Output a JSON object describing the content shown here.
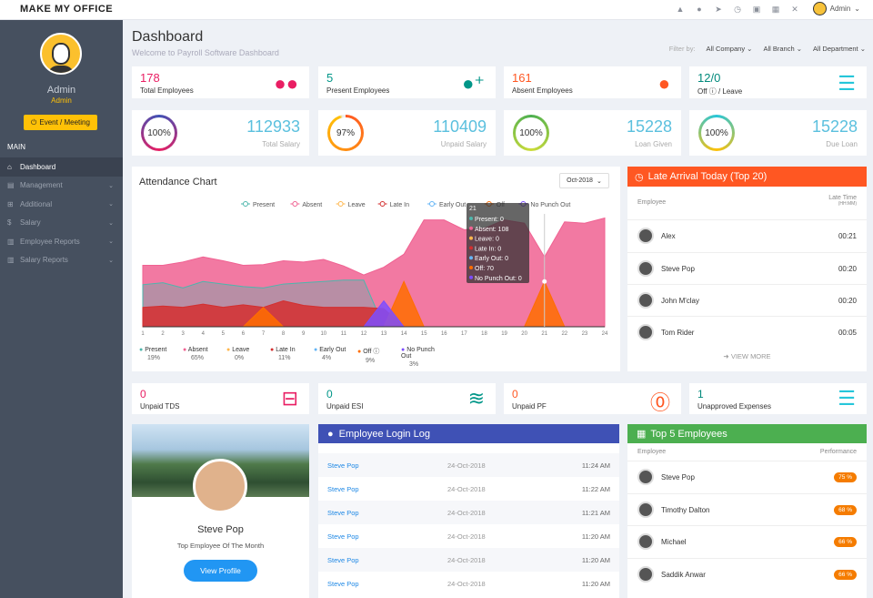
{
  "app": {
    "brand": "MAKE MY OFFICE",
    "user": "Admin"
  },
  "topicons": [
    "warning-icon",
    "bell-icon",
    "send-icon",
    "clock-icon",
    "message-icon",
    "calendar-icon",
    "tools-icon"
  ],
  "sidebar": {
    "name": "Admin",
    "role": "Admin",
    "event_btn": "Event / Meeting",
    "section": "MAIN",
    "items": [
      {
        "label": "Dashboard",
        "icon": "home-icon"
      },
      {
        "label": "Management",
        "icon": "grid-icon"
      },
      {
        "label": "Additional",
        "icon": "plus-icon"
      },
      {
        "label": "Salary",
        "icon": "money-icon"
      },
      {
        "label": "Employee Reports",
        "icon": "report-icon"
      },
      {
        "label": "Salary Reports",
        "icon": "report-icon"
      }
    ]
  },
  "header": {
    "title": "Dashboard",
    "subtitle": "Welcome to Payroll Software Dashboard",
    "filter_label": "Filter by:",
    "filters": [
      "All Company",
      "All Branch",
      "All Department"
    ]
  },
  "stats": [
    {
      "value": "178",
      "label": "Total Employees",
      "color": "#e91e63",
      "icon": "users-icon"
    },
    {
      "value": "5",
      "label": "Present Employees",
      "color": "#009688",
      "icon": "user-add-icon"
    },
    {
      "value": "161",
      "label": "Absent Employees",
      "color": "#ff5722",
      "icon": "user-icon"
    },
    {
      "value": "12/0",
      "label": "Off ⓘ / Leave",
      "color": "#26a69a",
      "icon": "coins-icon"
    }
  ],
  "bigs": [
    {
      "pct": "100%",
      "value": "112933",
      "label": "Total Salary",
      "color": "#3f51b5",
      "color2": "#e91e63"
    },
    {
      "pct": "97%",
      "value": "110409",
      "label": "Unpaid Salary",
      "color": "#ff5722",
      "color2": "#ffc107"
    },
    {
      "pct": "100%",
      "value": "15228",
      "label": "Loan Given",
      "color": "#4caf50",
      "color2": "#8bc34a"
    },
    {
      "pct": "100%",
      "value": "15228",
      "label": "Due Loan",
      "color": "#26c6da",
      "color2": "#ffc107"
    }
  ],
  "chart_data": {
    "type": "area",
    "title": "Attendance Chart",
    "selector": "Oct-2018",
    "x": [
      1,
      2,
      3,
      4,
      5,
      6,
      7,
      8,
      9,
      10,
      11,
      12,
      13,
      14,
      15,
      16,
      17,
      18,
      19,
      20,
      21,
      22,
      23,
      24
    ],
    "ylim": [
      0,
      180
    ],
    "series": [
      {
        "name": "Present",
        "color": "#4db6ac",
        "values": [
          65,
          68,
          60,
          70,
          66,
          62,
          60,
          66,
          68,
          70,
          72,
          72,
          0,
          0,
          0,
          0,
          0,
          0,
          0,
          0,
          0,
          0,
          0,
          0
        ]
      },
      {
        "name": "Absent",
        "color": "#f06292",
        "values": [
          95,
          95,
          100,
          108,
          102,
          95,
          96,
          102,
          100,
          104,
          94,
          80,
          92,
          112,
          165,
          165,
          150,
          152,
          165,
          160,
          108,
          162,
          160,
          168
        ]
      },
      {
        "name": "Leave",
        "color": "#ffb74d",
        "values": [
          0,
          0,
          0,
          0,
          0,
          0,
          0,
          0,
          0,
          0,
          0,
          0,
          0,
          0,
          0,
          0,
          0,
          0,
          0,
          0,
          0,
          0,
          0,
          0
        ]
      },
      {
        "name": "Late In",
        "color": "#d32f2f",
        "values": [
          30,
          32,
          30,
          35,
          30,
          34,
          30,
          40,
          33,
          30,
          30,
          30,
          28,
          0,
          0,
          0,
          0,
          0,
          0,
          0,
          0,
          0,
          0,
          0
        ]
      },
      {
        "name": "Early Out",
        "color": "#64b5f6",
        "values": [
          0,
          0,
          0,
          0,
          0,
          0,
          0,
          0,
          0,
          0,
          0,
          0,
          0,
          0,
          0,
          0,
          0,
          0,
          0,
          0,
          0,
          0,
          0,
          0
        ]
      },
      {
        "name": "Off",
        "color": "#ff6d00",
        "values": [
          0,
          0,
          0,
          0,
          0,
          0,
          30,
          0,
          0,
          0,
          0,
          0,
          0,
          70,
          0,
          0,
          0,
          0,
          0,
          0,
          70,
          0,
          0,
          0
        ]
      },
      {
        "name": "No Punch Out",
        "color": "#7c4dff",
        "values": [
          0,
          0,
          0,
          0,
          0,
          0,
          0,
          0,
          0,
          0,
          0,
          0,
          40,
          0,
          0,
          0,
          0,
          0,
          0,
          0,
          0,
          0,
          0,
          0
        ]
      }
    ],
    "tooltip": {
      "title": "21",
      "lines": [
        "Present: 0",
        "Absent: 108",
        "Leave: 0",
        "Late In: 0",
        "Early Out: 0",
        "Off: 70",
        "No Punch Out: 0"
      ]
    },
    "legend": [
      {
        "name": "Present",
        "pct": "19%"
      },
      {
        "name": "Absent",
        "pct": "65%"
      },
      {
        "name": "Leave",
        "pct": "0%"
      },
      {
        "name": "Late In",
        "pct": "11%"
      },
      {
        "name": "Early Out",
        "pct": "4%"
      },
      {
        "name": "Off ⓘ",
        "pct": "9%"
      },
      {
        "name": "No Punch Out",
        "pct": "3%"
      }
    ]
  },
  "late": {
    "title": "Late Arrival Today (Top 20)",
    "col1": "Employee",
    "col2": "Late Time",
    "col2sub": "(HH:MM)",
    "rows": [
      {
        "name": "Alex",
        "time": "00:21"
      },
      {
        "name": "Steve Pop",
        "time": "00:20"
      },
      {
        "name": "John M'clay",
        "time": "00:20"
      },
      {
        "name": "Tom Rider",
        "time": "00:05"
      }
    ],
    "more": "VIEW MORE"
  },
  "minis": [
    {
      "value": "0",
      "label": "Unpaid TDS",
      "color": "#e91e63",
      "icon": "minus-box-icon"
    },
    {
      "value": "0",
      "label": "Unpaid ESI",
      "color": "#009688",
      "icon": "waves-icon"
    },
    {
      "value": "0",
      "label": "Unpaid PF",
      "color": "#ff5722",
      "icon": "pinterest-icon"
    },
    {
      "value": "1",
      "label": "Unapproved Expenses",
      "color": "#26a69a",
      "icon": "coins-icon"
    }
  ],
  "profile": {
    "name": "Steve Pop",
    "subtitle": "Top Employee Of The Month",
    "button": "View Profile"
  },
  "loginlog": {
    "title": "Employee Login Log",
    "rows": [
      {
        "name": "Steve Pop",
        "date": "24-Oct-2018",
        "time": "11:24 AM"
      },
      {
        "name": "Steve Pop",
        "date": "24-Oct-2018",
        "time": "11:22 AM"
      },
      {
        "name": "Steve Pop",
        "date": "24-Oct-2018",
        "time": "11:21 AM"
      },
      {
        "name": "Steve Pop",
        "date": "24-Oct-2018",
        "time": "11:20 AM"
      },
      {
        "name": "Steve Pop",
        "date": "24-Oct-2018",
        "time": "11:20 AM"
      },
      {
        "name": "Steve Pop",
        "date": "24-Oct-2018",
        "time": "11:20 AM"
      }
    ]
  },
  "top5": {
    "title": "Top 5 Employees",
    "col1": "Employee",
    "col2": "Performance",
    "rows": [
      {
        "name": "Steve Pop",
        "perf": "75 %"
      },
      {
        "name": "Timothy Dalton",
        "perf": "68 %"
      },
      {
        "name": "Michael",
        "perf": "66 %"
      },
      {
        "name": "Saddik Anwar",
        "perf": "66 %"
      }
    ]
  }
}
